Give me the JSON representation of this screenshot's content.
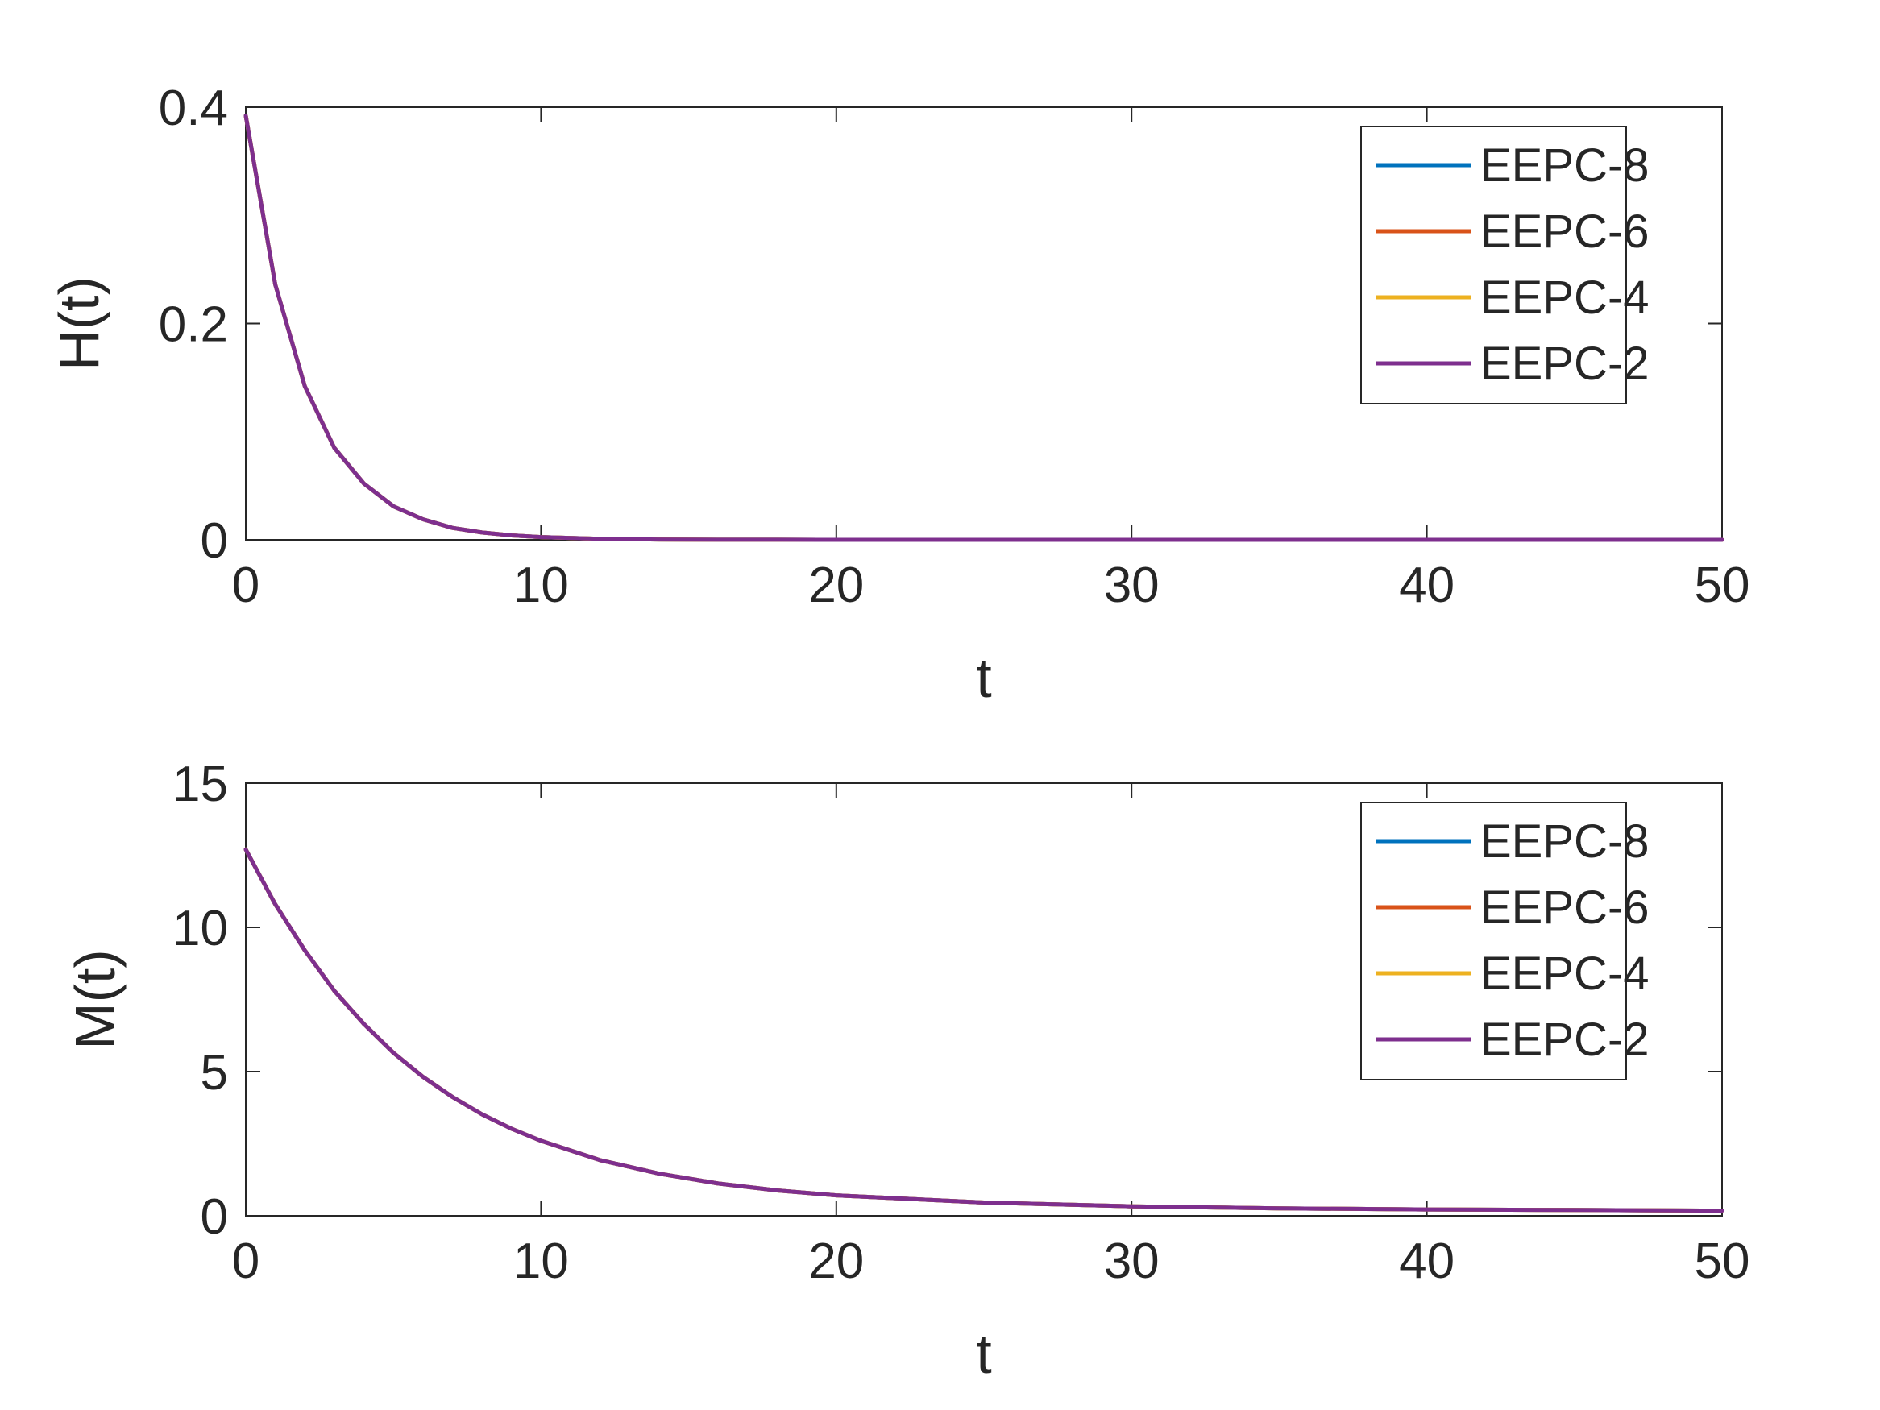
{
  "chart_data": [
    {
      "type": "line",
      "xlabel": "t",
      "ylabel": "H(t)",
      "xlim": [
        0,
        50
      ],
      "ylim": [
        0,
        0.4
      ],
      "xticks": [
        0,
        10,
        20,
        30,
        40,
        50
      ],
      "yticks": [
        0,
        0.2,
        0.4
      ],
      "xtick_labels": [
        "0",
        "10",
        "20",
        "30",
        "40",
        "50"
      ],
      "ytick_labels": [
        "0",
        "0.2",
        "0.4"
      ],
      "grid": false,
      "legend_position": "top-right",
      "series": [
        {
          "name": "EEPC-8",
          "color": "#0072BD",
          "x": [
            0,
            1,
            2,
            3,
            4,
            5,
            6,
            7,
            8,
            9,
            10,
            12,
            14,
            16,
            18,
            20,
            25,
            30,
            35,
            40,
            45,
            50
          ],
          "y": [
            0.392,
            0.236,
            0.142,
            0.085,
            0.052,
            0.031,
            0.019,
            0.011,
            0.0068,
            0.0041,
            0.0025,
            0.0009,
            0.0003,
            0.0001,
            4e-05,
            2e-05,
            1e-06,
            0,
            0,
            0,
            0,
            0
          ]
        },
        {
          "name": "EEPC-6",
          "color": "#D95319",
          "x": [
            0,
            1,
            2,
            3,
            4,
            5,
            6,
            7,
            8,
            9,
            10,
            12,
            14,
            16,
            18,
            20,
            25,
            30,
            35,
            40,
            45,
            50
          ],
          "y": [
            0.392,
            0.236,
            0.142,
            0.085,
            0.052,
            0.031,
            0.019,
            0.011,
            0.0068,
            0.0041,
            0.0025,
            0.0009,
            0.0003,
            0.0001,
            4e-05,
            2e-05,
            1e-06,
            0,
            0,
            0,
            0,
            0
          ]
        },
        {
          "name": "EEPC-4",
          "color": "#EDB120",
          "x": [
            0,
            1,
            2,
            3,
            4,
            5,
            6,
            7,
            8,
            9,
            10,
            12,
            14,
            16,
            18,
            20,
            25,
            30,
            35,
            40,
            45,
            50
          ],
          "y": [
            0.392,
            0.236,
            0.142,
            0.085,
            0.052,
            0.031,
            0.019,
            0.011,
            0.0068,
            0.0041,
            0.0025,
            0.0009,
            0.0003,
            0.0001,
            4e-05,
            2e-05,
            1e-06,
            0,
            0,
            0,
            0,
            0
          ]
        },
        {
          "name": "EEPC-2",
          "color": "#7E2F8E",
          "x": [
            0,
            1,
            2,
            3,
            4,
            5,
            6,
            7,
            8,
            9,
            10,
            12,
            14,
            16,
            18,
            20,
            25,
            30,
            35,
            40,
            45,
            50
          ],
          "y": [
            0.392,
            0.236,
            0.142,
            0.085,
            0.052,
            0.031,
            0.019,
            0.011,
            0.0068,
            0.0041,
            0.0025,
            0.0009,
            0.0003,
            0.0001,
            4e-05,
            2e-05,
            1e-06,
            0,
            0,
            0,
            0,
            0
          ]
        }
      ]
    },
    {
      "type": "line",
      "xlabel": "t",
      "ylabel": "M(t)",
      "xlim": [
        0,
        50
      ],
      "ylim": [
        0,
        15
      ],
      "xticks": [
        0,
        10,
        20,
        30,
        40,
        50
      ],
      "yticks": [
        0,
        5,
        10,
        15
      ],
      "xtick_labels": [
        "0",
        "10",
        "20",
        "30",
        "40",
        "50"
      ],
      "ytick_labels": [
        "0",
        "5",
        "10",
        "15"
      ],
      "grid": false,
      "legend_position": "top-right",
      "series": [
        {
          "name": "EEPC-8",
          "color": "#0072BD",
          "x": [
            0,
            1,
            2,
            3,
            4,
            5,
            6,
            7,
            8,
            9,
            10,
            12,
            14,
            16,
            18,
            20,
            25,
            30,
            35,
            40,
            45,
            50
          ],
          "y": [
            12.7,
            10.8,
            9.2,
            7.8,
            6.65,
            5.65,
            4.82,
            4.12,
            3.52,
            3.02,
            2.6,
            1.93,
            1.46,
            1.12,
            0.88,
            0.71,
            0.46,
            0.33,
            0.26,
            0.22,
            0.2,
            0.18
          ]
        },
        {
          "name": "EEPC-6",
          "color": "#D95319",
          "x": [
            0,
            1,
            2,
            3,
            4,
            5,
            6,
            7,
            8,
            9,
            10,
            12,
            14,
            16,
            18,
            20,
            25,
            30,
            35,
            40,
            45,
            50
          ],
          "y": [
            12.7,
            10.8,
            9.2,
            7.8,
            6.65,
            5.65,
            4.82,
            4.12,
            3.52,
            3.02,
            2.6,
            1.93,
            1.46,
            1.12,
            0.88,
            0.71,
            0.46,
            0.33,
            0.26,
            0.22,
            0.2,
            0.18
          ]
        },
        {
          "name": "EEPC-4",
          "color": "#EDB120",
          "x": [
            0,
            1,
            2,
            3,
            4,
            5,
            6,
            7,
            8,
            9,
            10,
            12,
            14,
            16,
            18,
            20,
            25,
            30,
            35,
            40,
            45,
            50
          ],
          "y": [
            12.7,
            10.8,
            9.2,
            7.8,
            6.65,
            5.65,
            4.82,
            4.12,
            3.52,
            3.02,
            2.6,
            1.93,
            1.46,
            1.12,
            0.88,
            0.71,
            0.46,
            0.33,
            0.26,
            0.22,
            0.2,
            0.18
          ]
        },
        {
          "name": "EEPC-2",
          "color": "#7E2F8E",
          "x": [
            0,
            1,
            2,
            3,
            4,
            5,
            6,
            7,
            8,
            9,
            10,
            12,
            14,
            16,
            18,
            20,
            25,
            30,
            35,
            40,
            45,
            50
          ],
          "y": [
            12.7,
            10.8,
            9.2,
            7.8,
            6.65,
            5.65,
            4.82,
            4.12,
            3.52,
            3.02,
            2.6,
            1.93,
            1.46,
            1.12,
            0.88,
            0.71,
            0.46,
            0.33,
            0.26,
            0.22,
            0.2,
            0.18
          ]
        }
      ]
    }
  ]
}
